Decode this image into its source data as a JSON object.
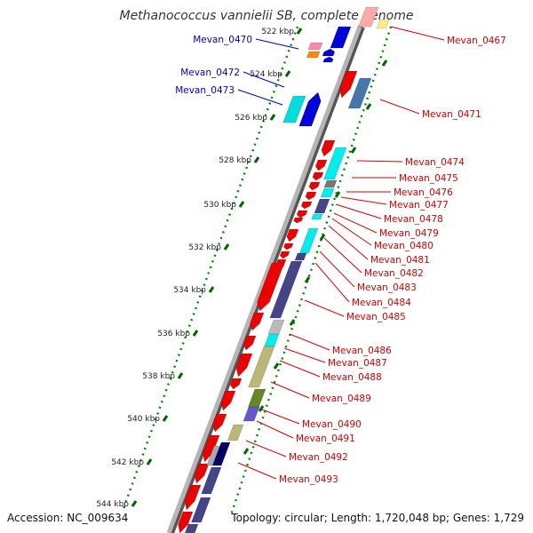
{
  "title": "Methanococcus vannielii SB, complete genome",
  "footer": {
    "accession": "Accession: NC_009634",
    "topology": "Topology: circular; Length: 1,720,048 bp; Genes: 1,729"
  },
  "colors": {
    "forward_label": "#0000cc",
    "reverse_label": "#dd0000",
    "scale_dots": "#008800",
    "backbone": "#808080"
  },
  "ticks": [
    "522 kbp",
    "524 kbp",
    "526 kbp",
    "528 kbp",
    "530 kbp",
    "532 kbp",
    "534 kbp",
    "536 kbp",
    "538 kbp",
    "540 kbp",
    "542 kbp",
    "544 kbp"
  ],
  "forward_genes": [
    {
      "label": "Mevan_0470"
    },
    {
      "label": "Mevan_0472"
    },
    {
      "label": "Mevan_0473"
    }
  ],
  "reverse_genes": [
    {
      "label": "Mevan_0467"
    },
    {
      "label": "Mevan_0471"
    },
    {
      "label": "Mevan_0474"
    },
    {
      "label": "Mevan_0475"
    },
    {
      "label": "Mevan_0476"
    },
    {
      "label": "Mevan_0477"
    },
    {
      "label": "Mevan_0478"
    },
    {
      "label": "Mevan_0479"
    },
    {
      "label": "Mevan_0480"
    },
    {
      "label": "Mevan_0481"
    },
    {
      "label": "Mevan_0482"
    },
    {
      "label": "Mevan_0483"
    },
    {
      "label": "Mevan_0484"
    },
    {
      "label": "Mevan_0485"
    },
    {
      "label": "Mevan_0486"
    },
    {
      "label": "Mevan_0487"
    },
    {
      "label": "Mevan_0488"
    },
    {
      "label": "Mevan_0489"
    },
    {
      "label": "Mevan_0490"
    },
    {
      "label": "Mevan_0491"
    },
    {
      "label": "Mevan_0492"
    },
    {
      "label": "Mevan_0493"
    }
  ]
}
